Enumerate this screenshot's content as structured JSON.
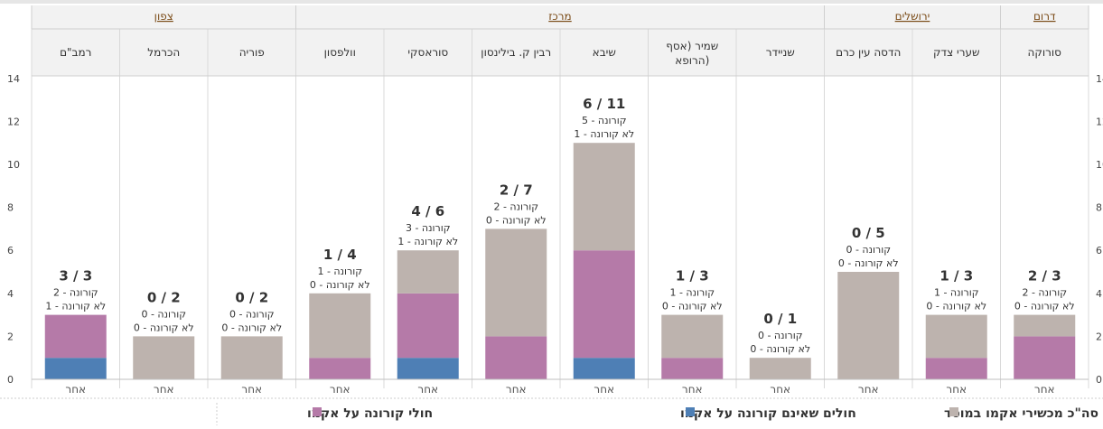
{
  "chart_data": {
    "type": "bar",
    "stacked": true,
    "direction": "rtl",
    "ylim": [
      0,
      14
    ],
    "yticks": [
      0,
      2,
      4,
      6,
      8,
      10,
      12,
      14
    ],
    "regions": [
      {
        "name": "דרום",
        "hospitals": [
          "סורוקה"
        ]
      },
      {
        "name": "ירושלים",
        "hospitals": [
          "שערי צדק",
          "הדסה עין כרם"
        ]
      },
      {
        "name": "מרכז",
        "hospitals": [
          "שניידר",
          "שמיר (אסף הרופא)",
          "שיבא",
          "רבין ק. בילינסון",
          "סוראסקי",
          "וולפסון"
        ]
      },
      {
        "name": "צפון",
        "hospitals": [
          "פוריה",
          "הכרמל",
          "רמב\"ם"
        ]
      }
    ],
    "categories": [
      "סורוקה",
      "שערי צדק",
      "הדסה עין כרם",
      "שניידר",
      "שמיר (אסף הרופא)",
      "שיבא",
      "רבין ק. בילינסון",
      "סוראסקי",
      "וולפסון",
      "פוריה",
      "הכרמל",
      "רמב\"ם"
    ],
    "category_sublabel": "אחר",
    "series": [
      {
        "name": "חולים שאינם קורונה על אקמו",
        "color": "#4e7fb5",
        "values": [
          0,
          0,
          0,
          0,
          0,
          1,
          0,
          1,
          0,
          0,
          0,
          1
        ]
      },
      {
        "name": "חולי קורונה על אקמו",
        "color": "#b57aa8",
        "values": [
          2,
          1,
          0,
          0,
          1,
          5,
          2,
          3,
          1,
          0,
          0,
          2
        ]
      },
      {
        "name": "סה\"כ מכשירי אקמו במוסד",
        "color": "#bdb3ae",
        "values": [
          1,
          2,
          5,
          1,
          2,
          5,
          5,
          2,
          3,
          2,
          2,
          0
        ]
      }
    ],
    "totals": [
      3,
      3,
      5,
      1,
      3,
      11,
      7,
      6,
      4,
      2,
      2,
      3
    ],
    "labels": [
      {
        "main": "2 / 3",
        "corona": "קורונה - 2",
        "non_corona": "לא קורונה - 0"
      },
      {
        "main": "1 / 3",
        "corona": "קורונה - 1",
        "non_corona": "לא קורונה - 0"
      },
      {
        "main": "0 / 5",
        "corona": "קורונה - 0",
        "non_corona": "לא קורונה - 0"
      },
      {
        "main": "0 / 1",
        "corona": "קורונה - 0",
        "non_corona": "לא קורונה - 0"
      },
      {
        "main": "1 / 3",
        "corona": "קורונה - 1",
        "non_corona": "לא קורונה - 0"
      },
      {
        "main": "6 / 11",
        "corona": "קורונה - 5",
        "non_corona": "לא קורונה - 1"
      },
      {
        "main": "2 / 7",
        "corona": "קורונה - 2",
        "non_corona": "לא קורונה - 0"
      },
      {
        "main": "4 / 6",
        "corona": "קורונה - 3",
        "non_corona": "לא קורונה - 1"
      },
      {
        "main": "1 / 4",
        "corona": "קורונה - 1",
        "non_corona": "לא קורונה - 0"
      },
      {
        "main": "0 / 2",
        "corona": "קורונה - 0",
        "non_corona": "לא קורונה - 0"
      },
      {
        "main": "0 / 2",
        "corona": "קורונה - 0",
        "non_corona": "לא קורונה - 0"
      },
      {
        "main": "3 / 3",
        "corona": "קורונה - 2",
        "non_corona": "לא קורונה - 1"
      }
    ],
    "legend": [
      {
        "label": "סה\"כ מכשירי אקמו במוסד",
        "color": "#bdb3ae"
      },
      {
        "label": "חולים שאינם קורונה על אקמו",
        "color": "#4e7fb5"
      },
      {
        "label": "חולי קורונה על אקמו",
        "color": "#b57aa8"
      }
    ],
    "legend_position": "bottom",
    "grid": false
  }
}
